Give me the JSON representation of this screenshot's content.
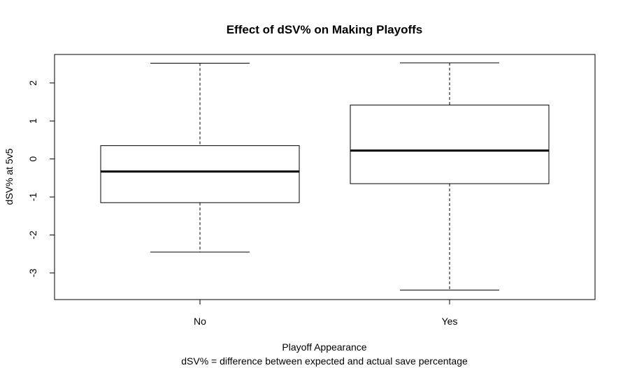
{
  "chart_data": {
    "type": "boxplot",
    "title": "Effect of dSV% on Making Playoffs",
    "xlabel": "Playoff Appearance",
    "xlabel_sub": "dSV% = difference between expected and actual save percentage",
    "ylabel": "dSV% at 5v5",
    "ylim": [
      -3.7,
      2.75
    ],
    "yticks": [
      -3,
      -2,
      -1,
      0,
      1,
      2
    ],
    "categories": [
      "No",
      "Yes"
    ],
    "boxes": [
      {
        "category": "No",
        "min": -2.45,
        "q1": -1.15,
        "median": -0.33,
        "q3": 0.35,
        "max": 2.52
      },
      {
        "category": "Yes",
        "min": -3.45,
        "q1": -0.65,
        "median": 0.22,
        "q3": 1.42,
        "max": 2.53
      }
    ],
    "grid": false,
    "legend": "none"
  }
}
